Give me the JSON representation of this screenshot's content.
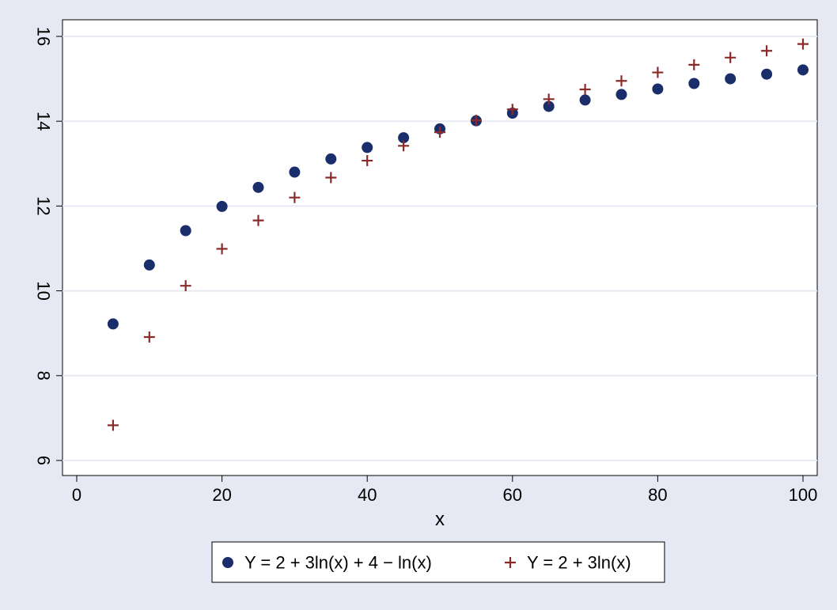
{
  "chart_data": {
    "type": "scatter",
    "title": "",
    "xlabel": "x",
    "ylabel": "",
    "xlim": [
      0,
      100
    ],
    "ylim": [
      6,
      16
    ],
    "xticks": [
      0,
      20,
      40,
      60,
      80,
      100
    ],
    "yticks": [
      6,
      8,
      10,
      12,
      14,
      16
    ],
    "grid": "horizontal",
    "legend_position": "bottom",
    "x": [
      5,
      10,
      15,
      20,
      25,
      30,
      35,
      40,
      45,
      50,
      55,
      60,
      65,
      70,
      75,
      80,
      85,
      90,
      95,
      100
    ],
    "series": [
      {
        "name": "Y = 2 + 3ln(x) + 4 − ln(x)",
        "marker": "circle",
        "color": "#1a2e6c",
        "values": [
          9.22,
          10.61,
          11.42,
          11.99,
          12.44,
          12.8,
          13.11,
          13.38,
          13.61,
          13.82,
          14.01,
          14.19,
          14.35,
          14.5,
          14.63,
          14.76,
          14.89,
          15.0,
          15.11,
          15.21
        ]
      },
      {
        "name": "Y = 2 + 3ln(x)",
        "marker": "plus",
        "color": "#8c2a2a",
        "values": [
          6.83,
          8.91,
          10.12,
          10.99,
          11.66,
          12.2,
          12.67,
          13.07,
          13.42,
          13.74,
          14.02,
          14.28,
          14.52,
          14.75,
          14.95,
          15.15,
          15.33,
          15.5,
          15.66,
          15.82
        ]
      }
    ]
  }
}
